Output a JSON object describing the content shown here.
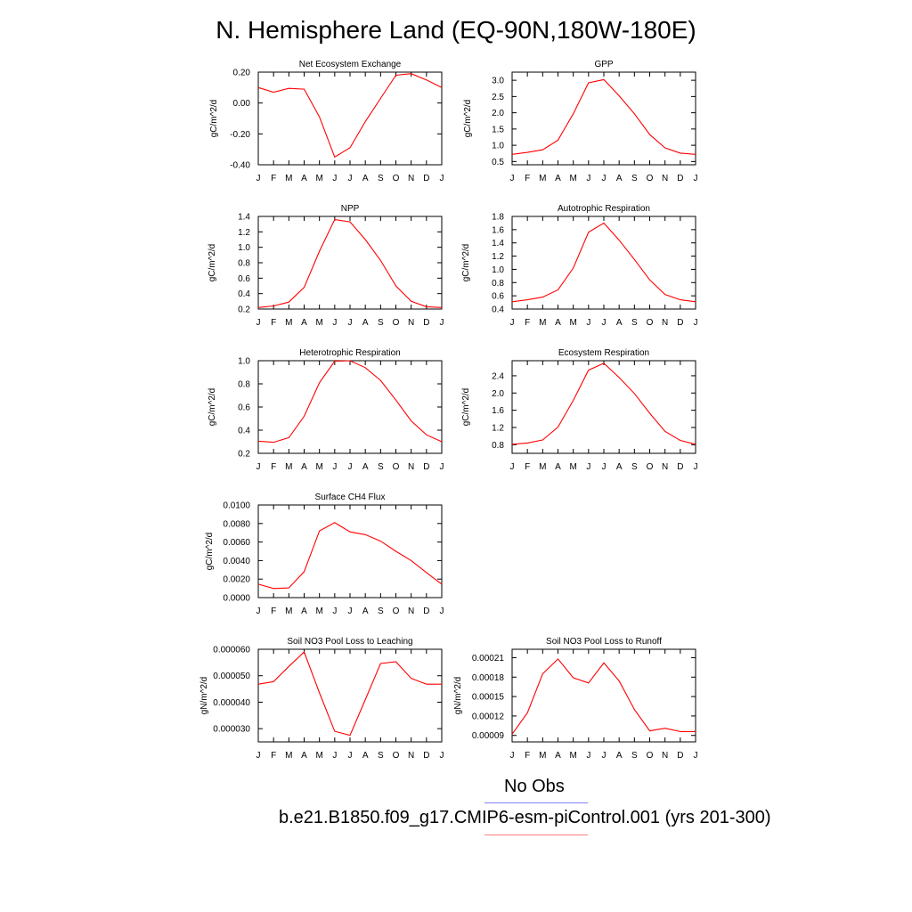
{
  "title": "N. Hemisphere Land (EQ-90N,180W-180E)",
  "legend": [
    {
      "label": "No Obs",
      "color": "#8080ff"
    },
    {
      "label": "b.e21.B1850.f09_g17.CMIP6-esm-piControl.001 (yrs 201-300)",
      "color": "#ff8080"
    }
  ],
  "chart_data": [
    {
      "type": "line",
      "title": "Net Ecosystem Exchange",
      "xlabel": "",
      "ylabel": "gC/m^2/d",
      "x": [
        "J",
        "F",
        "M",
        "A",
        "M",
        "J",
        "J",
        "A",
        "S",
        "O",
        "N",
        "D",
        "J"
      ],
      "ylim": [
        -0.4,
        0.2
      ],
      "yticks": [
        -0.4,
        -0.2,
        0.0,
        0.2
      ],
      "ytick_labels": [
        "-0.40",
        "-0.20",
        "0.00",
        "0.20"
      ],
      "series": [
        {
          "color": "#ff0000",
          "values": [
            0.1,
            0.07,
            0.095,
            0.09,
            -0.09,
            -0.35,
            -0.29,
            -0.12,
            0.03,
            0.18,
            0.19,
            0.15,
            0.1
          ]
        }
      ]
    },
    {
      "type": "line",
      "title": "GPP",
      "xlabel": "",
      "ylabel": "gC/m^2/d",
      "x": [
        "J",
        "F",
        "M",
        "A",
        "M",
        "J",
        "J",
        "A",
        "S",
        "O",
        "N",
        "D",
        "J"
      ],
      "ylim": [
        0.4,
        3.25
      ],
      "yticks": [
        0.5,
        1.0,
        1.5,
        2.0,
        2.5,
        3.0
      ],
      "ytick_labels": [
        "0.5",
        "1.0",
        "1.5",
        "2.0",
        "2.5",
        "3.0"
      ],
      "series": [
        {
          "color": "#ff0000",
          "values": [
            0.72,
            0.78,
            0.86,
            1.16,
            1.97,
            2.92,
            3.02,
            2.52,
            1.97,
            1.33,
            0.92,
            0.76,
            0.72
          ]
        }
      ]
    },
    {
      "type": "line",
      "title": "NPP",
      "xlabel": "",
      "ylabel": "gC/m^2/d",
      "x": [
        "J",
        "F",
        "M",
        "A",
        "M",
        "J",
        "J",
        "A",
        "S",
        "O",
        "N",
        "D",
        "J"
      ],
      "ylim": [
        0.2,
        1.4
      ],
      "yticks": [
        0.2,
        0.4,
        0.6,
        0.8,
        1.0,
        1.2,
        1.4
      ],
      "ytick_labels": [
        "0.2",
        "0.4",
        "0.6",
        "0.8",
        "1.0",
        "1.2",
        "1.4"
      ],
      "series": [
        {
          "color": "#ff0000",
          "values": [
            0.22,
            0.24,
            0.29,
            0.48,
            0.95,
            1.36,
            1.33,
            1.1,
            0.83,
            0.5,
            0.3,
            0.23,
            0.22
          ]
        }
      ]
    },
    {
      "type": "line",
      "title": "Autotrophic Respiration",
      "xlabel": "",
      "ylabel": "gC/m^2/d",
      "x": [
        "J",
        "F",
        "M",
        "A",
        "M",
        "J",
        "J",
        "A",
        "S",
        "O",
        "N",
        "D",
        "J"
      ],
      "ylim": [
        0.4,
        1.8
      ],
      "yticks": [
        0.4,
        0.6,
        0.8,
        1.0,
        1.2,
        1.4,
        1.6,
        1.8
      ],
      "ytick_labels": [
        "0.4",
        "0.6",
        "0.8",
        "1.0",
        "1.2",
        "1.4",
        "1.6",
        "1.8"
      ],
      "series": [
        {
          "color": "#ff0000",
          "values": [
            0.51,
            0.54,
            0.58,
            0.69,
            1.02,
            1.56,
            1.7,
            1.44,
            1.15,
            0.84,
            0.62,
            0.54,
            0.51
          ]
        }
      ]
    },
    {
      "type": "line",
      "title": "Heterotrophic Respiration",
      "xlabel": "",
      "ylabel": "gC/m^2/d",
      "x": [
        "J",
        "F",
        "M",
        "A",
        "M",
        "J",
        "J",
        "A",
        "S",
        "O",
        "N",
        "D",
        "J"
      ],
      "ylim": [
        0.2,
        1.0
      ],
      "yticks": [
        0.2,
        0.4,
        0.6,
        0.8,
        1.0
      ],
      "ytick_labels": [
        "0.2",
        "0.4",
        "0.6",
        "0.8",
        "1.0"
      ],
      "series": [
        {
          "color": "#ff0000",
          "values": [
            0.305,
            0.295,
            0.335,
            0.52,
            0.81,
            0.995,
            1.0,
            0.94,
            0.83,
            0.66,
            0.48,
            0.36,
            0.3
          ]
        }
      ]
    },
    {
      "type": "line",
      "title": "Ecosystem Respiration",
      "xlabel": "",
      "ylabel": "gC/m^2/d",
      "x": [
        "J",
        "F",
        "M",
        "A",
        "M",
        "J",
        "J",
        "A",
        "S",
        "O",
        "N",
        "D",
        "J"
      ],
      "ylim": [
        0.6,
        2.75
      ],
      "yticks": [
        0.8,
        1.2,
        1.6,
        2.0,
        2.4
      ],
      "ytick_labels": [
        "0.8",
        "1.2",
        "1.6",
        "2.0",
        "2.4"
      ],
      "series": [
        {
          "color": "#ff0000",
          "values": [
            0.81,
            0.84,
            0.91,
            1.21,
            1.83,
            2.53,
            2.69,
            2.36,
            1.99,
            1.53,
            1.11,
            0.9,
            0.81
          ]
        }
      ]
    },
    {
      "type": "line",
      "title": "Surface CH4 Flux",
      "xlabel": "",
      "ylabel": "gC/m^2/d",
      "x": [
        "J",
        "F",
        "M",
        "A",
        "M",
        "J",
        "J",
        "A",
        "S",
        "O",
        "N",
        "D",
        "J"
      ],
      "ylim": [
        0.0,
        0.01
      ],
      "yticks": [
        0.0,
        0.002,
        0.004,
        0.006,
        0.008,
        0.01
      ],
      "ytick_labels": [
        "0.0000",
        "0.0020",
        "0.0040",
        "0.0060",
        "0.0080",
        "0.0100"
      ],
      "series": [
        {
          "color": "#ff0000",
          "values": [
            0.00145,
            0.00098,
            0.00105,
            0.0028,
            0.0072,
            0.0081,
            0.0071,
            0.0068,
            0.0061,
            0.005,
            0.004,
            0.0027,
            0.00145
          ]
        }
      ]
    },
    {
      "type": "line",
      "title": "Soil NO3 Pool Loss to Leaching",
      "xlabel": "",
      "ylabel": "gN/m^2/d",
      "x": [
        "J",
        "F",
        "M",
        "A",
        "M",
        "J",
        "J",
        "A",
        "S",
        "O",
        "N",
        "D",
        "J"
      ],
      "ylim": [
        2.5e-05,
        6e-05
      ],
      "yticks": [
        3e-05,
        4e-05,
        5e-05,
        6e-05
      ],
      "ytick_labels": [
        "0.000030",
        "0.000040",
        "0.000050",
        "0.000060"
      ],
      "series": [
        {
          "color": "#ff0000",
          "values": [
            4.68e-05,
            4.78e-05,
            5.35e-05,
            5.9e-05,
            4.35e-05,
            2.9e-05,
            2.75e-05,
            4.1e-05,
            5.46e-05,
            5.53e-05,
            4.9e-05,
            4.68e-05,
            4.68e-05
          ]
        }
      ]
    },
    {
      "type": "line",
      "title": "Soil NO3 Pool Loss to Runoff",
      "xlabel": "",
      "ylabel": "gN/m^2/d",
      "x": [
        "J",
        "F",
        "M",
        "A",
        "M",
        "J",
        "J",
        "A",
        "S",
        "O",
        "N",
        "D",
        "J"
      ],
      "ylim": [
        8e-05,
        0.000223
      ],
      "yticks": [
        9e-05,
        0.00012,
        0.00015,
        0.00018,
        0.00021
      ],
      "ytick_labels": [
        "0.00009",
        "0.00012",
        "0.00015",
        "0.00018",
        "0.00021"
      ],
      "series": [
        {
          "color": "#ff0000",
          "values": [
            9.2e-05,
            0.000125,
            0.000185,
            0.000208,
            0.000179,
            0.000171,
            0.000202,
            0.000174,
            0.00013,
            9.7e-05,
            0.000101,
            9.6e-05,
            9.6e-05
          ]
        }
      ]
    }
  ]
}
